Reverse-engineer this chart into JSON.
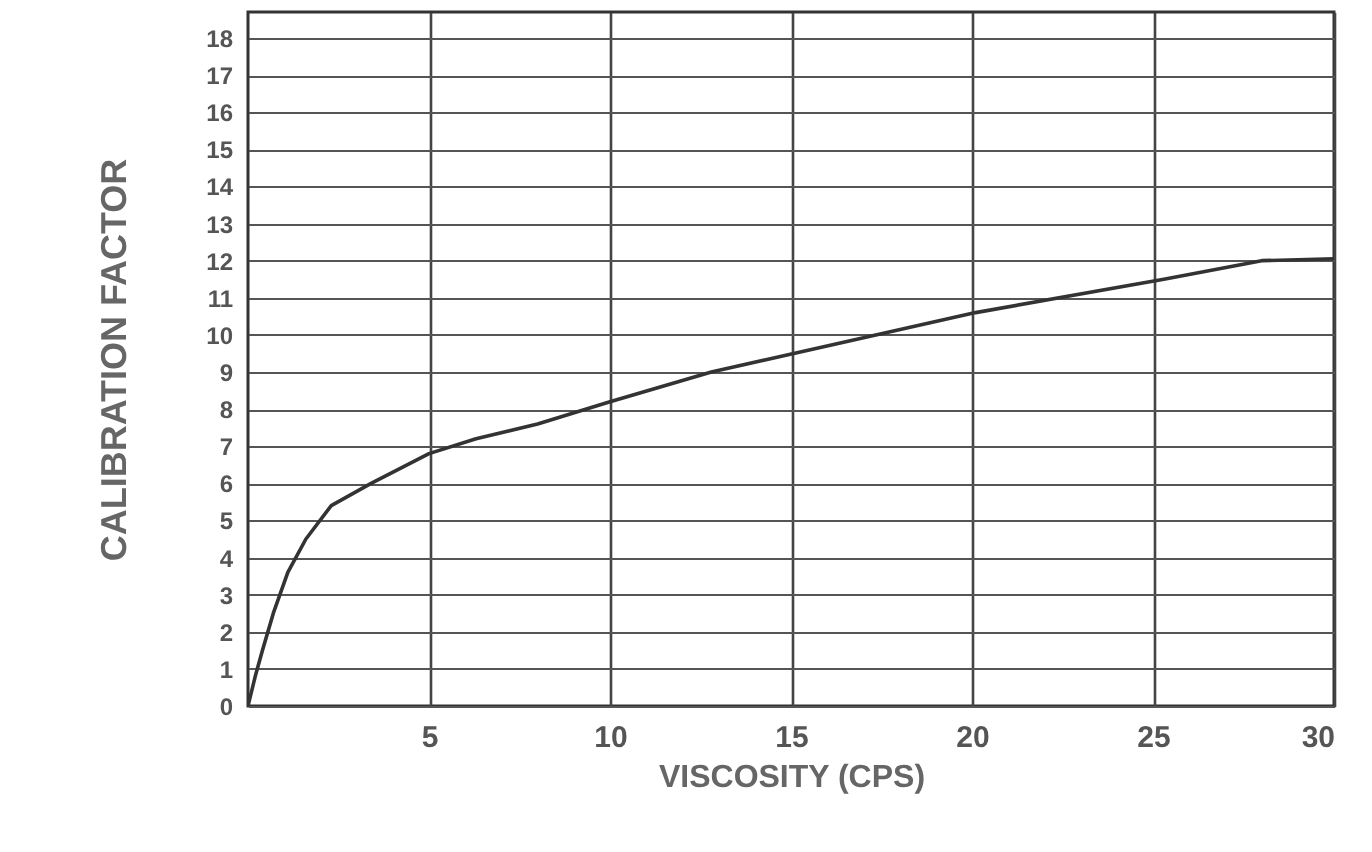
{
  "chart_data": {
    "type": "line",
    "xlabel": "VISCOSITY  (CPS)",
    "ylabel": "CALIBRATION FACTOR",
    "x": [
      0,
      0.2,
      0.4,
      0.7,
      1.1,
      1.6,
      2.3,
      3.4,
      5,
      6.3,
      8,
      10,
      12.8,
      14.4,
      20.1,
      25.3,
      28,
      30
    ],
    "series": [
      {
        "color": "#333333",
        "values": [
          0,
          0.8,
          1.5,
          2.5,
          3.6,
          4.5,
          5.4,
          6.0,
          6.8,
          7.2,
          7.6,
          8.2,
          9.0,
          9.35,
          10.6,
          11.5,
          12.0,
          12.05
        ]
      }
    ],
    "xlim": [
      0,
      30
    ],
    "xticks": [
      5,
      10,
      15,
      20,
      25,
      30
    ],
    "ylim": [
      0,
      18.7
    ],
    "yticks": [
      0,
      1,
      2,
      3,
      4,
      5,
      6,
      7,
      8,
      9,
      10,
      11,
      12,
      13,
      14,
      15,
      16,
      17,
      18
    ],
    "grid": true,
    "marker": "none",
    "line_style": "solid"
  }
}
